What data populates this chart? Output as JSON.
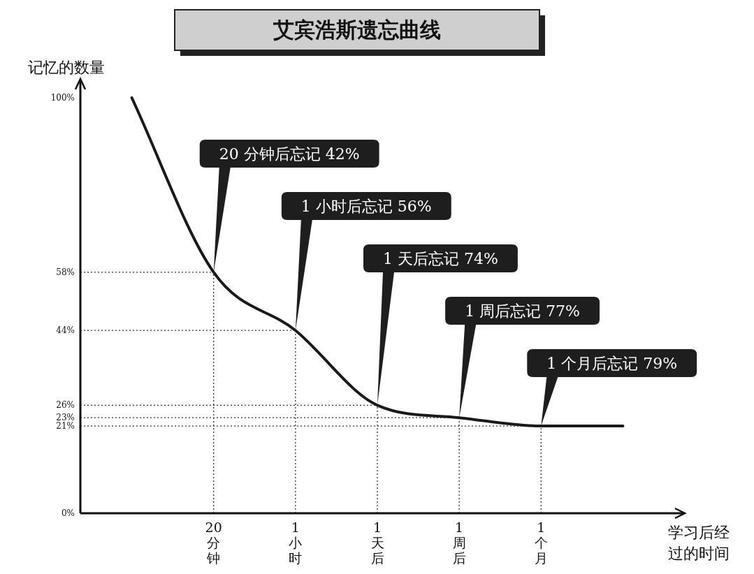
{
  "chart_data": {
    "type": "line",
    "title": "艾宾浩斯遗忘曲线",
    "ylabel": "记忆的数量",
    "xlabel": "学习后经过的时间",
    "categories": [
      null,
      "20分钟",
      "1小时",
      "1天后",
      "1周后",
      "1个月",
      null
    ],
    "series": [
      {
        "color": "#1a1a1a",
        "values": [
          100,
          58,
          44,
          26,
          23,
          21,
          21
        ]
      }
    ],
    "ylim": [
      0,
      100
    ],
    "yticks": [
      {
        "value": 0,
        "label": "0%"
      },
      {
        "value": 21,
        "label": "21%"
      },
      {
        "value": 23,
        "label": "23%"
      },
      {
        "value": 26,
        "label": "26%"
      },
      {
        "value": 44,
        "label": "44%"
      },
      {
        "value": 58,
        "label": "58%"
      },
      {
        "value": 100,
        "label": "100%"
      }
    ],
    "annotations": [
      "20 分钟后忘记 42%",
      "1 小时后忘记 56%",
      "1 天后忘记 74%",
      "1 周后忘记 77%",
      "1 个月后忘记 79%"
    ],
    "ref_lines": [
      {
        "axis": "y",
        "value": 58,
        "color": "#333333",
        "line_style": "dotted"
      },
      {
        "axis": "y",
        "value": 44,
        "color": "#333333",
        "line_style": "dotted"
      },
      {
        "axis": "y",
        "value": 26,
        "color": "#333333",
        "line_style": "dotted"
      },
      {
        "axis": "y",
        "value": 23,
        "color": "#333333",
        "line_style": "dotted"
      },
      {
        "axis": "y",
        "value": 21,
        "color": "#333333",
        "line_style": "dotted"
      },
      {
        "axis": "x",
        "value": "20分钟",
        "color": "#333333",
        "line_style": "dotted"
      },
      {
        "axis": "x",
        "value": "1小时",
        "color": "#333333",
        "line_style": "dotted"
      },
      {
        "axis": "x",
        "value": "1天后",
        "color": "#333333",
        "line_style": "dotted"
      },
      {
        "axis": "x",
        "value": "1周后",
        "color": "#333333",
        "line_style": "dotted"
      },
      {
        "axis": "x",
        "value": "1个月",
        "color": "#333333",
        "line_style": "dotted"
      }
    ],
    "marker": "none",
    "line_style": "solid"
  }
}
